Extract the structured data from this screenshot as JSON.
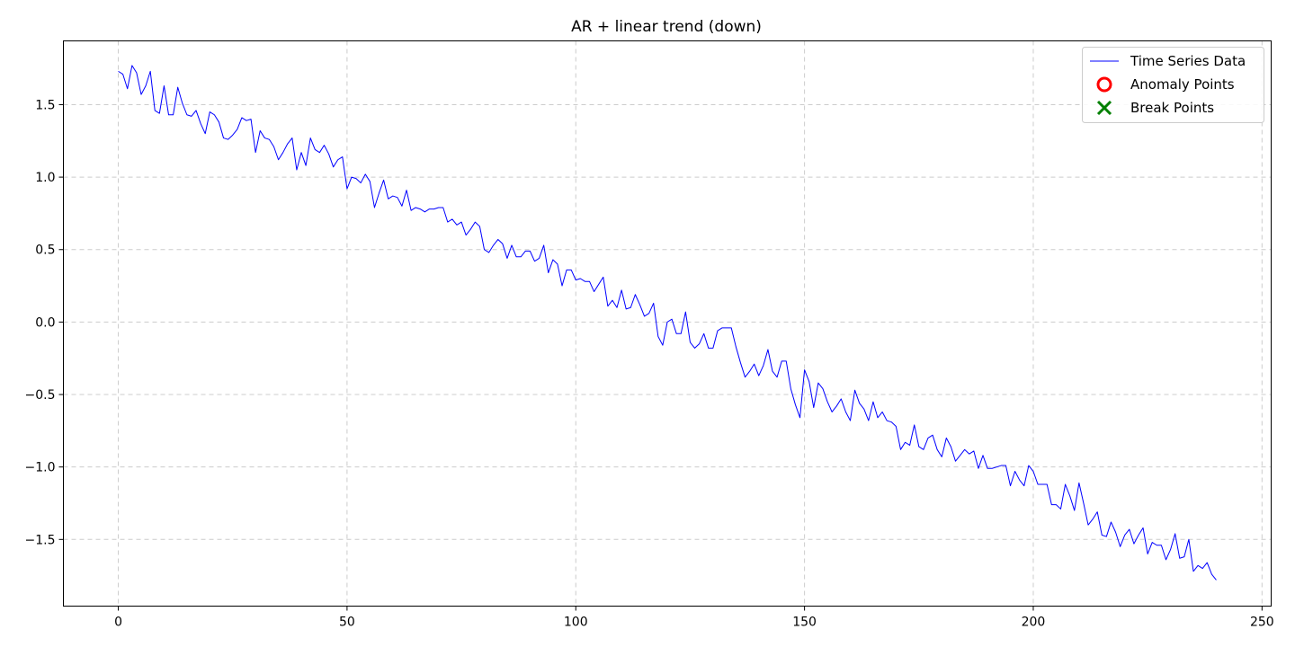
{
  "chart_data": {
    "type": "line",
    "title": "AR + linear trend (down)",
    "xlabel": "",
    "ylabel": "",
    "xlim": [
      -12,
      252
    ],
    "ylim": [
      -1.96,
      1.94
    ],
    "xticks": [
      0,
      50,
      100,
      150,
      200,
      250
    ],
    "yticks": [
      1.5,
      1.0,
      0.5,
      0.0,
      -0.5,
      -1.0,
      -1.5
    ],
    "ytick_labels": [
      "1.5",
      "1.0",
      "0.5",
      "0.0",
      "−0.5",
      "−1.0",
      "−1.5"
    ],
    "grid": true,
    "legend_position": "top-right",
    "legend": [
      {
        "label": "Time Series Data",
        "marker": "line",
        "color": "#0000ff"
      },
      {
        "label": "Anomaly Points",
        "marker": "circle",
        "color": "#ff0000"
      },
      {
        "label": "Break Points",
        "marker": "x",
        "color": "#008000"
      }
    ],
    "series": [
      {
        "name": "Time Series Data",
        "color": "#0000ff",
        "x_start": 0,
        "x_step": 1,
        "values": [
          1.73,
          1.71,
          1.61,
          1.77,
          1.72,
          1.57,
          1.63,
          1.73,
          1.46,
          1.44,
          1.63,
          1.43,
          1.43,
          1.62,
          1.51,
          1.43,
          1.42,
          1.46,
          1.37,
          1.3,
          1.45,
          1.43,
          1.38,
          1.27,
          1.26,
          1.29,
          1.33,
          1.41,
          1.39,
          1.4,
          1.17,
          1.32,
          1.27,
          1.26,
          1.21,
          1.12,
          1.17,
          1.23,
          1.27,
          1.05,
          1.17,
          1.08,
          1.27,
          1.19,
          1.17,
          1.22,
          1.16,
          1.07,
          1.12,
          1.14,
          0.92,
          1.0,
          0.99,
          0.96,
          1.02,
          0.97,
          0.79,
          0.89,
          0.98,
          0.85,
          0.87,
          0.86,
          0.8,
          0.91,
          0.77,
          0.79,
          0.78,
          0.76,
          0.78,
          0.78,
          0.79,
          0.79,
          0.69,
          0.71,
          0.67,
          0.69,
          0.6,
          0.64,
          0.69,
          0.66,
          0.5,
          0.48,
          0.53,
          0.57,
          0.54,
          0.44,
          0.53,
          0.45,
          0.45,
          0.49,
          0.49,
          0.42,
          0.44,
          0.53,
          0.34,
          0.43,
          0.4,
          0.25,
          0.36,
          0.36,
          0.29,
          0.3,
          0.28,
          0.28,
          0.21,
          0.26,
          0.31,
          0.11,
          0.15,
          0.1,
          0.22,
          0.09,
          0.1,
          0.19,
          0.12,
          0.04,
          0.06,
          0.13,
          -0.1,
          -0.16,
          0.0,
          0.02,
          -0.08,
          -0.08,
          0.07,
          -0.14,
          -0.18,
          -0.15,
          -0.08,
          -0.18,
          -0.18,
          -0.06,
          -0.04,
          -0.04,
          -0.04,
          -0.17,
          -0.28,
          -0.38,
          -0.34,
          -0.29,
          -0.37,
          -0.3,
          -0.19,
          -0.34,
          -0.38,
          -0.27,
          -0.27,
          -0.46,
          -0.57,
          -0.66,
          -0.33,
          -0.41,
          -0.59,
          -0.42,
          -0.46,
          -0.55,
          -0.62,
          -0.58,
          -0.53,
          -0.62,
          -0.68,
          -0.47,
          -0.56,
          -0.6,
          -0.68,
          -0.55,
          -0.66,
          -0.62,
          -0.68,
          -0.69,
          -0.72,
          -0.88,
          -0.83,
          -0.85,
          -0.71,
          -0.86,
          -0.88,
          -0.8,
          -0.78,
          -0.88,
          -0.93,
          -0.8,
          -0.86,
          -0.96,
          -0.92,
          -0.88,
          -0.91,
          -0.89,
          -1.01,
          -0.92,
          -1.01,
          -1.01,
          -1.0,
          -0.99,
          -0.99,
          -1.13,
          -1.03,
          -1.09,
          -1.13,
          -0.99,
          -1.03,
          -1.12,
          -1.12,
          -1.12,
          -1.26,
          -1.26,
          -1.29,
          -1.12,
          -1.2,
          -1.3,
          -1.11,
          -1.25,
          -1.4,
          -1.36,
          -1.31,
          -1.47,
          -1.48,
          -1.38,
          -1.45,
          -1.55,
          -1.47,
          -1.43,
          -1.53,
          -1.47,
          -1.42,
          -1.6,
          -1.52,
          -1.54,
          -1.54,
          -1.64,
          -1.57,
          -1.46,
          -1.63,
          -1.62,
          -1.5,
          -1.72,
          -1.68,
          -1.7,
          -1.66,
          -1.74,
          -1.78
        ]
      }
    ]
  }
}
